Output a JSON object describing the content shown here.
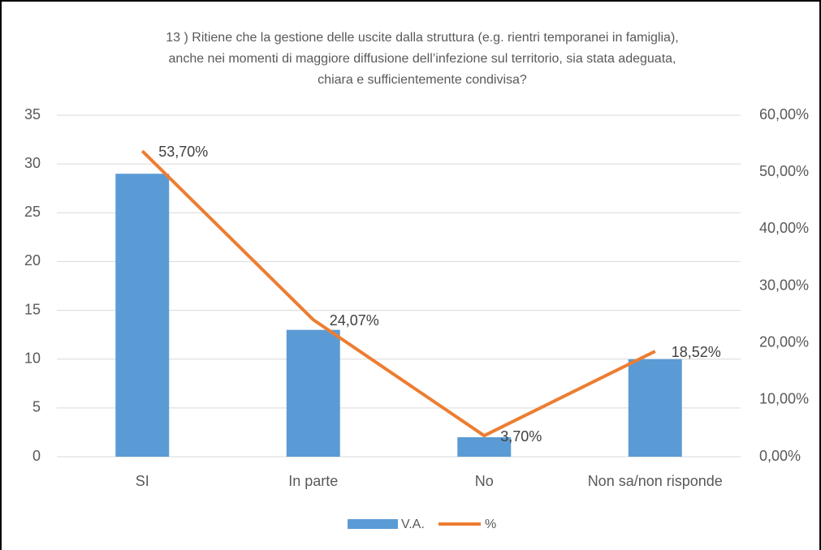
{
  "chart_data": {
    "type": "bar-line",
    "title": [
      "13 ) Ritiene che la gestione delle uscite dalla struttura (e.g. rientri temporanei in famiglia),",
      "anche nei momenti di maggiore diffusione dell’infezione sul territorio, sia stata adeguata,",
      "chiara e sufficientemente condivisa?"
    ],
    "categories": [
      "SI",
      "In parte",
      "No",
      "Non sa/non risponde"
    ],
    "series": [
      {
        "name": "V.A.",
        "type": "bar",
        "color": "#5b9bd5",
        "values": [
          29,
          13,
          2,
          10
        ]
      },
      {
        "name": "%",
        "type": "line",
        "axis": "y2",
        "color": "#ed7d31",
        "values": [
          53.7,
          24.07,
          3.7,
          18.52
        ],
        "value_labels": [
          "53,70%",
          "24,07%",
          "3,70%",
          "18,52%"
        ]
      }
    ],
    "ylim": [
      0,
      35
    ],
    "yticks": [
      0,
      5,
      10,
      15,
      20,
      25,
      30,
      35
    ],
    "y2lim": [
      0,
      60
    ],
    "y2ticks": [
      {
        "value": 0,
        "label": "0,00%"
      },
      {
        "value": 10,
        "label": "10,00%"
      },
      {
        "value": 20,
        "label": "20,00%"
      },
      {
        "value": 30,
        "label": "30,00%"
      },
      {
        "value": 40,
        "label": "40,00%"
      },
      {
        "value": 50,
        "label": "50,00%"
      },
      {
        "value": 60,
        "label": "60,00%"
      }
    ],
    "grid": true,
    "legend": "bottom"
  }
}
